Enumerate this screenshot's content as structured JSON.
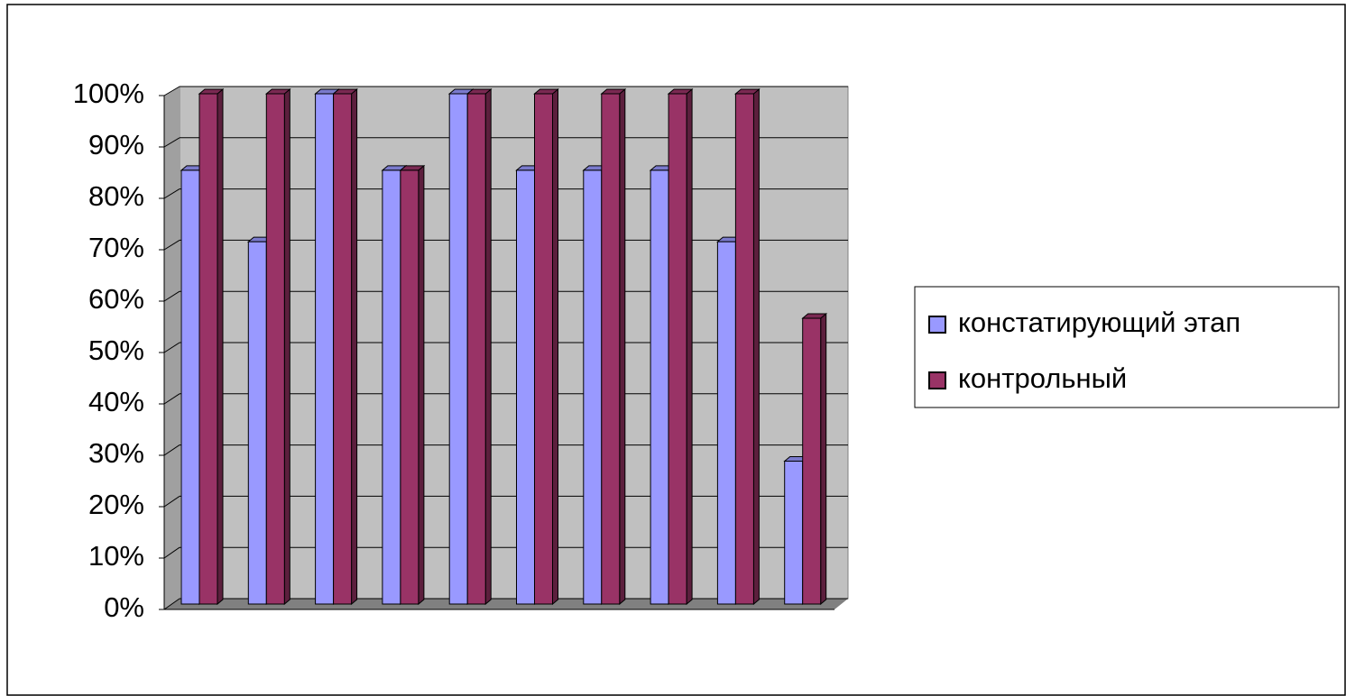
{
  "chart_data": {
    "type": "bar",
    "categories": [
      null,
      null,
      null,
      null,
      null,
      null,
      null,
      null,
      null,
      null
    ],
    "series": [
      {
        "name": "констатирующий этап",
        "color": "#9999ff",
        "values": [
          85,
          71,
          100,
          85,
          100,
          85,
          85,
          85,
          71,
          28
        ]
      },
      {
        "name": "контрольный",
        "color": "#993366",
        "values": [
          100,
          100,
          100,
          85,
          100,
          100,
          100,
          100,
          100,
          56
        ]
      }
    ],
    "ylim": [
      0,
      100
    ],
    "yticks": [
      {
        "value": 0,
        "label": "0%"
      },
      {
        "value": 10,
        "label": "10%"
      },
      {
        "value": 20,
        "label": "20%"
      },
      {
        "value": 30,
        "label": "30%"
      },
      {
        "value": 40,
        "label": "40%"
      },
      {
        "value": 50,
        "label": "50%"
      },
      {
        "value": 60,
        "label": "60%"
      },
      {
        "value": 70,
        "label": "70%"
      },
      {
        "value": 80,
        "label": "80%"
      },
      {
        "value": 90,
        "label": "90%"
      },
      {
        "value": 100,
        "label": "100%"
      }
    ],
    "grid": true,
    "legend": "right"
  }
}
